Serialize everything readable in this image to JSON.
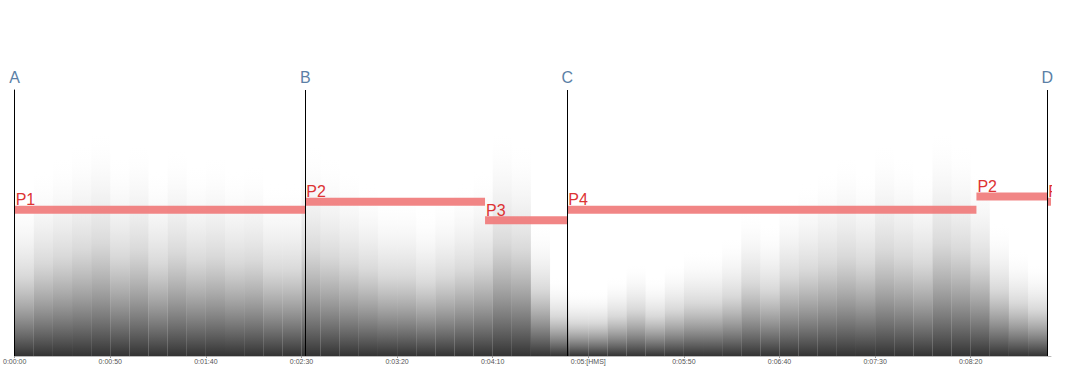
{
  "chart_data": {
    "type": "spectrogram",
    "xlim": [
      0,
      542
    ],
    "ylim": [
      0,
      100
    ],
    "xticks": [
      {
        "value": 0,
        "label": "0:00:00"
      },
      {
        "value": 50,
        "label": "0:00:50"
      },
      {
        "value": 100,
        "label": "0:01:40"
      },
      {
        "value": 150,
        "label": "0:02:30"
      },
      {
        "value": 200,
        "label": "0:03:20"
      },
      {
        "value": 250,
        "label": "0:04:10"
      },
      {
        "value": 300,
        "label": "0:05:[HMS]"
      },
      {
        "value": 350,
        "label": "0:05:50"
      },
      {
        "value": 400,
        "label": "0:06:40"
      },
      {
        "value": 450,
        "label": "0:07:30"
      },
      {
        "value": 500,
        "label": "0:08:20"
      }
    ],
    "grid": false,
    "tick_labels": "x",
    "energy": {
      "color": "#000000",
      "x": [
        5,
        15,
        25,
        35,
        45,
        55,
        65,
        75,
        85,
        95,
        105,
        115,
        125,
        135,
        145,
        155,
        165,
        175,
        185,
        195,
        205,
        215,
        225,
        235,
        245,
        255,
        265,
        275,
        285,
        295,
        305,
        315,
        325,
        335,
        345,
        355,
        365,
        375,
        385,
        395,
        405,
        415,
        425,
        435,
        445,
        455,
        465,
        475,
        485,
        495,
        505,
        515,
        525,
        535
      ],
      "values": [
        60,
        70,
        75,
        80,
        85,
        75,
        80,
        70,
        78,
        72,
        75,
        70,
        72,
        65,
        65,
        80,
        75,
        70,
        65,
        60,
        60,
        55,
        60,
        65,
        70,
        85,
        80,
        50,
        30,
        25,
        25,
        30,
        35,
        30,
        35,
        40,
        40,
        45,
        55,
        50,
        60,
        65,
        70,
        75,
        70,
        80,
        75,
        70,
        85,
        80,
        70,
        50,
        40,
        35
      ]
    },
    "sections": [
      {
        "label": "A",
        "x": 0
      },
      {
        "label": "B",
        "x": 152
      },
      {
        "label": "C",
        "x": 289
      },
      {
        "label": "D",
        "x": 540
      }
    ],
    "segments": [
      {
        "label": "P1",
        "start": 0,
        "end": 152,
        "value": 55
      },
      {
        "label": "P2",
        "start": 152,
        "end": 246,
        "value": 58
      },
      {
        "label": "P3",
        "start": 246,
        "end": 289,
        "value": 51
      },
      {
        "label": "P4",
        "start": 289,
        "end": 503,
        "value": 55
      },
      {
        "label": "P2",
        "start": 503,
        "end": 540,
        "value": 60
      },
      {
        "label": "P",
        "start": 540,
        "end": 542,
        "value": 58
      }
    ],
    "color": "#f07878"
  }
}
